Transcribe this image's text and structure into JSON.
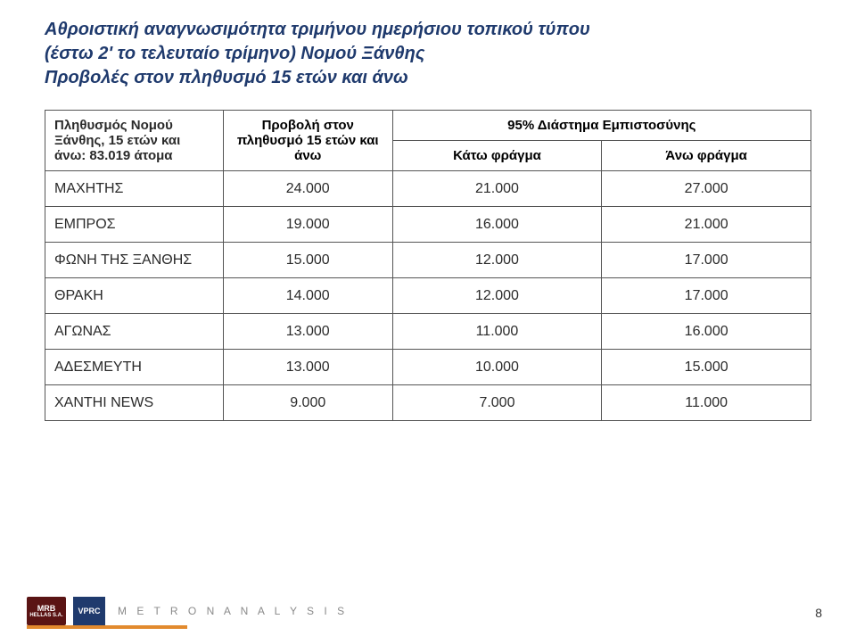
{
  "title": {
    "line1": "Αθροιστική αναγνωσιμότητα τριμήνου ημερήσιου τοπικού τύπου",
    "line2": "(έστω 2' το τελευταίο τρίμηνο) Νομού Ξάνθης",
    "line3": "Προβολές στον πληθυσμό 15 ετών και άνω"
  },
  "headers": {
    "rowhead": "Πληθυσμός Νομού Ξάνθης, 15 ετών και άνω: 83.019 άτομα",
    "projection": "Προβολή στον πληθυσμό 15 ετών και άνω",
    "ci_group": "95% Διάστημα Εμπιστοσύνης",
    "ci_low": "Κάτω φράγμα",
    "ci_high": "Άνω φράγμα"
  },
  "rows": [
    {
      "name": "ΜΑΧΗΤΗΣ",
      "proj": "24.000",
      "low": "21.000",
      "high": "27.000"
    },
    {
      "name": "ΕΜΠΡΟΣ",
      "proj": "19.000",
      "low": "16.000",
      "high": "21.000"
    },
    {
      "name": "ΦΩΝΗ ΤΗΣ ΞΑΝΘΗΣ",
      "proj": "15.000",
      "low": "12.000",
      "high": "17.000"
    },
    {
      "name": "ΘΡΑΚΗ",
      "proj": "14.000",
      "low": "12.000",
      "high": "17.000"
    },
    {
      "name": "ΑΓΩΝΑΣ",
      "proj": "13.000",
      "low": "11.000",
      "high": "16.000"
    },
    {
      "name": "ΑΔΕΣΜΕΥΤΗ",
      "proj": "13.000",
      "low": "10.000",
      "high": "15.000"
    },
    {
      "name": "XANTHI NEWS",
      "proj": "9.000",
      "low": "7.000",
      "high": "11.000"
    }
  ],
  "footer": {
    "mrb": "MRB",
    "mrb_sub": "HELLAS S.A.",
    "vprc": "VPRC",
    "metron": "M E T R O N A N A L Y S I S",
    "page": "8"
  },
  "colors": {
    "title": "#1f3a6d",
    "border": "#555555",
    "mrb_bg": "#5a1414",
    "vprc_bg": "#1f3a6d",
    "orange": "#e28a2e"
  }
}
